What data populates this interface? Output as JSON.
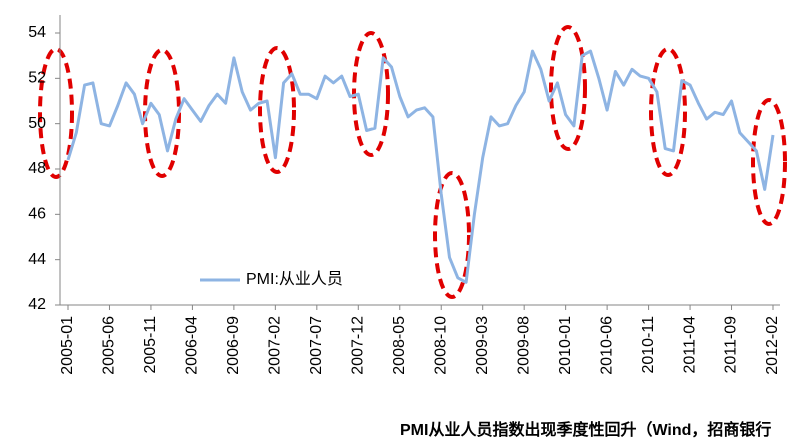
{
  "chart_data": {
    "type": "line",
    "categories": [
      "2005-01",
      null,
      null,
      null,
      null,
      "2005-06",
      null,
      null,
      null,
      null,
      "2005-11",
      null,
      null,
      null,
      null,
      "2006-04",
      null,
      null,
      null,
      null,
      "2006-09",
      null,
      null,
      null,
      null,
      "2007-02",
      null,
      null,
      null,
      null,
      "2007-07",
      null,
      null,
      null,
      null,
      "2007-12",
      null,
      null,
      null,
      null,
      "2008-05",
      null,
      null,
      null,
      null,
      "2008-10",
      null,
      null,
      null,
      null,
      "2009-03",
      null,
      null,
      null,
      null,
      "2009-08",
      null,
      null,
      null,
      null,
      "2010-01",
      null,
      null,
      null,
      null,
      "2010-06",
      null,
      null,
      null,
      null,
      "2010-11",
      null,
      null,
      null,
      null,
      "2011-04",
      null,
      null,
      null,
      null,
      "2011-09",
      null,
      null,
      null,
      null,
      "2012-02"
    ],
    "series": [
      {
        "name": "PMI:从业人员",
        "color": "#8eb4e3",
        "values": [
          48.4,
          49.6,
          51.7,
          51.8,
          50.0,
          49.9,
          50.8,
          51.8,
          51.3,
          50.0,
          50.9,
          50.4,
          48.8,
          50.2,
          51.1,
          50.6,
          50.1,
          50.8,
          51.3,
          50.9,
          52.9,
          51.4,
          50.6,
          50.9,
          51.0,
          48.5,
          51.8,
          52.2,
          51.3,
          51.3,
          51.1,
          52.1,
          51.8,
          52.1,
          51.2,
          51.3,
          49.7,
          49.8,
          52.9,
          52.5,
          51.2,
          50.3,
          50.6,
          50.7,
          50.3,
          46.9,
          44.1,
          43.2,
          43.0,
          46.0,
          48.5,
          50.3,
          49.9,
          50.0,
          50.8,
          51.4,
          53.2,
          52.4,
          51.0,
          51.8,
          50.4,
          49.9,
          53.0,
          53.2,
          52.0,
          50.6,
          52.3,
          51.7,
          52.4,
          52.1,
          52.0,
          51.4,
          48.9,
          48.8,
          51.9,
          51.7,
          50.9,
          50.2,
          50.5,
          50.4,
          51.0,
          49.6,
          49.2,
          48.8,
          47.1,
          49.5
        ]
      }
    ],
    "ylim": [
      42,
      54
    ],
    "yticks": [
      42,
      44,
      46,
      48,
      50,
      52,
      54
    ],
    "grid": false,
    "legend": "lower left",
    "caption": "PMI从业人员指数出现季度性回升（Wind，招商银行"
  }
}
